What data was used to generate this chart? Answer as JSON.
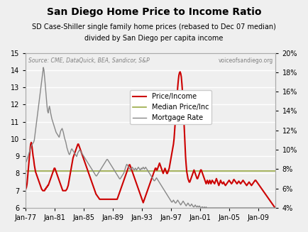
{
  "title": "San Diego Home Price to Income Ratio",
  "subtitle1": "SD Case-Shiller single family home prices (rebased to Dec 07 median)",
  "subtitle2": "divided by San Diego per capita income",
  "source_left": "Source: CME, DataQuick, BEA, Sandicor, S&P",
  "source_right": "voiceofsandiego.org",
  "ylim_left": [
    6,
    15
  ],
  "ylim_right": [
    4,
    20
  ],
  "yticks_left": [
    6,
    7,
    8,
    9,
    10,
    11,
    12,
    13,
    14,
    15
  ],
  "yticks_right_vals": [
    4,
    6,
    8,
    10,
    12,
    14,
    16,
    18,
    20
  ],
  "yticks_right_labels": [
    "4%",
    "6%",
    "8%",
    "10%",
    "12%",
    "14%",
    "16%",
    "18%",
    "20%"
  ],
  "xtick_labels": [
    "Jan-77",
    "Jan-81",
    "Jan-85",
    "Jan-89",
    "Jan-93",
    "Jan-97",
    "Jan-01",
    "Jan-05",
    "Jan-09"
  ],
  "xtick_positions": [
    0,
    48,
    96,
    144,
    192,
    240,
    288,
    336,
    384
  ],
  "n_months": 414,
  "background_color": "#efefef",
  "plot_bg_color": "#efefef",
  "grid_color": "#ffffff",
  "price_income_color": "#cc0000",
  "median_color": "#99aa44",
  "mortgage_color": "#888888",
  "median_value": 8.15,
  "legend_labels": [
    "Price/Income",
    "Median Price/Inc",
    "Mortgage Rate"
  ],
  "price_income_data": [
    7.1,
    7.2,
    7.4,
    7.8,
    8.2,
    8.6,
    9.0,
    9.4,
    9.7,
    9.8,
    9.6,
    9.3,
    9.0,
    8.8,
    8.5,
    8.3,
    8.1,
    8.0,
    7.9,
    7.8,
    7.7,
    7.6,
    7.5,
    7.4,
    7.3,
    7.2,
    7.1,
    7.05,
    7.0,
    7.0,
    7.0,
    7.0,
    7.1,
    7.1,
    7.2,
    7.2,
    7.3,
    7.3,
    7.4,
    7.5,
    7.6,
    7.7,
    7.8,
    7.9,
    8.0,
    8.1,
    8.2,
    8.3,
    8.3,
    8.2,
    8.1,
    8.0,
    7.9,
    7.8,
    7.7,
    7.6,
    7.5,
    7.4,
    7.3,
    7.2,
    7.1,
    7.0,
    7.0,
    7.0,
    7.0,
    7.0,
    7.0,
    7.05,
    7.1,
    7.2,
    7.3,
    7.5,
    7.7,
    7.9,
    8.1,
    8.3,
    8.5,
    8.7,
    8.9,
    9.0,
    9.1,
    9.2,
    9.3,
    9.4,
    9.5,
    9.6,
    9.7,
    9.7,
    9.6,
    9.5,
    9.4,
    9.3,
    9.2,
    9.1,
    9.0,
    8.9,
    8.8,
    8.7,
    8.6,
    8.5,
    8.4,
    8.3,
    8.2,
    8.1,
    8.0,
    7.9,
    7.8,
    7.7,
    7.6,
    7.5,
    7.4,
    7.3,
    7.2,
    7.1,
    7.0,
    6.9,
    6.8,
    6.75,
    6.7,
    6.65,
    6.6,
    6.55,
    6.5,
    6.5,
    6.5,
    6.5,
    6.5,
    6.5,
    6.5,
    6.5,
    6.5,
    6.5,
    6.5,
    6.5,
    6.5,
    6.5,
    6.5,
    6.5,
    6.5,
    6.5,
    6.5,
    6.5,
    6.5,
    6.5,
    6.5,
    6.5,
    6.5,
    6.5,
    6.5,
    6.5,
    6.5,
    6.5,
    6.6,
    6.7,
    6.8,
    6.9,
    7.0,
    7.1,
    7.2,
    7.3,
    7.4,
    7.5,
    7.6,
    7.7,
    7.8,
    7.9,
    8.0,
    8.1,
    8.2,
    8.3,
    8.4,
    8.5,
    8.5,
    8.4,
    8.3,
    8.2,
    8.1,
    8.0,
    7.9,
    7.8,
    7.7,
    7.6,
    7.5,
    7.4,
    7.3,
    7.2,
    7.1,
    7.0,
    6.9,
    6.8,
    6.7,
    6.6,
    6.5,
    6.4,
    6.3,
    6.4,
    6.5,
    6.6,
    6.7,
    6.8,
    6.9,
    7.0,
    7.1,
    7.2,
    7.3,
    7.4,
    7.5,
    7.6,
    7.7,
    7.8,
    7.9,
    8.0,
    8.1,
    8.2,
    8.3,
    8.3,
    8.2,
    8.2,
    8.3,
    8.4,
    8.5,
    8.6,
    8.5,
    8.4,
    8.3,
    8.2,
    8.1,
    8.0,
    8.1,
    8.2,
    8.3,
    8.2,
    8.1,
    8.0,
    8.0,
    8.1,
    8.2,
    8.3,
    8.5,
    8.7,
    8.9,
    9.1,
    9.3,
    9.5,
    9.7,
    10.0,
    10.5,
    11.0,
    11.5,
    12.0,
    12.5,
    13.0,
    13.4,
    13.7,
    13.85,
    13.9,
    13.8,
    13.6,
    13.2,
    12.7,
    12.0,
    11.3,
    10.5,
    9.7,
    9.0,
    8.5,
    8.1,
    7.9,
    7.7,
    7.6,
    7.5,
    7.5,
    7.6,
    7.7,
    7.8,
    7.9,
    8.0,
    8.1,
    8.2,
    8.1,
    8.0,
    7.9,
    7.8,
    7.7,
    7.7,
    7.8,
    7.9,
    8.0,
    8.1,
    8.2,
    8.2,
    8.1,
    8.0,
    7.9,
    7.8,
    7.7,
    7.6,
    7.5,
    7.4,
    7.5,
    7.6,
    7.5,
    7.4,
    7.5,
    7.6,
    7.5,
    7.4,
    7.5,
    7.6,
    7.55,
    7.5,
    7.45,
    7.4,
    7.5,
    7.6,
    7.7,
    7.6,
    7.5,
    7.4,
    7.3,
    7.4,
    7.5,
    7.6,
    7.5,
    7.45,
    7.4,
    7.45,
    7.5,
    7.4,
    7.35,
    7.3,
    7.35,
    7.4,
    7.45,
    7.5,
    7.55,
    7.6,
    7.55,
    7.5,
    7.45,
    7.4,
    7.45,
    7.5,
    7.6,
    7.65,
    7.6,
    7.55,
    7.5,
    7.45,
    7.4,
    7.45,
    7.5,
    7.55,
    7.5,
    7.45,
    7.4,
    7.45,
    7.5,
    7.55,
    7.6,
    7.55,
    7.5,
    7.45,
    7.4,
    7.35,
    7.3,
    7.35,
    7.4,
    7.45,
    7.5,
    7.45,
    7.4,
    7.35,
    7.3,
    7.35,
    7.4,
    7.45,
    7.5,
    7.55,
    7.6,
    7.6,
    7.55,
    7.5,
    7.45,
    7.4,
    7.35,
    7.3,
    7.25,
    7.2,
    7.15,
    7.1,
    7.05,
    7.0,
    6.95,
    6.9,
    6.85,
    6.8,
    6.75,
    6.7,
    6.65,
    6.6,
    6.55,
    6.5,
    6.45,
    6.4,
    6.35,
    6.3,
    6.25,
    6.2,
    6.15,
    6.1,
    6.05,
    6.0
  ],
  "mortgage_rate_data": [
    8.7,
    8.8,
    9.0,
    9.2,
    9.4,
    9.6,
    9.8,
    10.0,
    10.2,
    10.4,
    10.5,
    10.6,
    10.7,
    10.8,
    11.0,
    11.5,
    12.0,
    12.5,
    13.0,
    13.5,
    14.0,
    14.5,
    15.0,
    15.5,
    16.0,
    16.5,
    17.0,
    17.5,
    18.0,
    18.5,
    18.2,
    17.5,
    16.8,
    16.0,
    15.2,
    14.5,
    14.0,
    13.8,
    14.2,
    14.5,
    14.2,
    13.8,
    13.5,
    13.2,
    13.0,
    12.8,
    12.6,
    12.4,
    12.2,
    12.0,
    11.8,
    11.7,
    11.6,
    11.5,
    11.4,
    11.3,
    11.5,
    11.8,
    12.0,
    12.1,
    12.2,
    12.0,
    11.8,
    11.5,
    11.2,
    11.0,
    10.8,
    10.5,
    10.2,
    10.0,
    9.8,
    9.6,
    9.5,
    9.6,
    9.8,
    10.0,
    10.1,
    10.0,
    9.9,
    9.8,
    9.7,
    9.6,
    9.5,
    9.4,
    9.3,
    9.5,
    9.7,
    9.8,
    9.9,
    10.0,
    9.9,
    9.8,
    9.7,
    9.6,
    9.5,
    9.4,
    9.3,
    9.2,
    9.1,
    9.0,
    8.9,
    8.8,
    8.7,
    8.6,
    8.5,
    8.4,
    8.3,
    8.2,
    8.1,
    8.0,
    7.9,
    7.8,
    7.7,
    7.6,
    7.5,
    7.4,
    7.3,
    7.3,
    7.4,
    7.5,
    7.6,
    7.7,
    7.8,
    7.9,
    8.0,
    8.1,
    8.2,
    8.3,
    8.4,
    8.5,
    8.6,
    8.7,
    8.8,
    8.9,
    9.0,
    9.0,
    8.9,
    8.8,
    8.7,
    8.6,
    8.5,
    8.4,
    8.3,
    8.2,
    8.1,
    8.0,
    7.9,
    7.8,
    7.7,
    7.6,
    7.5,
    7.4,
    7.3,
    7.2,
    7.1,
    7.0,
    7.0,
    7.1,
    7.2,
    7.3,
    7.4,
    7.5,
    7.6,
    7.8,
    8.0,
    8.2,
    8.4,
    8.5,
    8.4,
    8.3,
    8.2,
    8.1,
    8.0,
    7.9,
    8.0,
    8.1,
    8.2,
    8.1,
    8.0,
    7.9,
    8.0,
    8.1,
    8.0,
    7.9,
    8.0,
    8.1,
    8.2,
    8.1,
    8.0,
    7.9,
    8.0,
    8.1,
    8.0,
    8.1,
    8.2,
    8.1,
    8.0,
    8.1,
    8.2,
    8.1,
    8.0,
    7.9,
    7.8,
    7.7,
    7.6,
    7.5,
    7.4,
    7.3,
    7.2,
    7.1,
    7.0,
    6.9,
    6.8,
    6.8,
    6.9,
    7.0,
    7.1,
    7.0,
    6.9,
    6.8,
    6.7,
    6.6,
    6.5,
    6.4,
    6.3,
    6.2,
    6.1,
    6.0,
    5.9,
    5.8,
    5.7,
    5.6,
    5.5,
    5.4,
    5.3,
    5.2,
    5.1,
    5.0,
    4.9,
    4.8,
    4.7,
    4.6,
    4.6,
    4.7,
    4.8,
    4.7,
    4.6,
    4.5,
    4.5,
    4.6,
    4.7,
    4.8,
    4.7,
    4.6,
    4.5,
    4.4,
    4.3,
    4.4,
    4.5,
    4.6,
    4.7,
    4.6,
    4.5,
    4.4,
    4.3,
    4.2,
    4.3,
    4.4,
    4.5,
    4.4,
    4.3,
    4.2,
    4.2,
    4.3,
    4.4,
    4.3,
    4.2,
    4.1,
    4.1,
    4.2,
    4.3,
    4.2,
    4.1,
    4.1,
    4.2,
    4.1,
    4.1,
    4.2,
    4.1,
    4.0,
    4.0,
    4.1,
    4.1,
    4.0,
    4.0,
    4.1,
    4.0,
    4.0,
    4.1,
    4.0,
    4.0,
    4.0,
    4.0,
    4.0,
    4.0,
    4.0,
    4.0,
    4.0,
    4.0,
    4.0,
    4.0,
    4.0,
    4.0,
    4.0,
    4.0,
    4.0,
    4.0,
    4.0,
    4.0,
    4.0,
    4.0,
    4.0,
    4.0,
    4.0,
    4.0,
    4.0,
    4.0,
    4.0,
    4.0,
    4.0,
    4.0,
    4.0,
    4.0,
    4.0,
    4.0,
    4.0,
    4.0,
    4.0,
    4.0,
    4.0,
    4.0,
    4.0,
    4.0,
    4.0,
    4.0,
    4.0,
    4.0,
    4.0,
    4.0,
    4.0,
    4.0,
    4.0,
    4.0,
    4.0,
    4.0,
    4.0,
    4.0,
    4.0,
    4.0,
    4.0,
    4.0,
    4.0,
    4.0,
    4.0,
    4.0,
    4.0,
    4.0,
    4.0,
    4.0,
    4.0,
    4.0,
    4.0,
    4.0,
    4.0,
    4.0,
    4.0,
    4.0,
    4.0,
    4.0,
    4.0,
    4.0,
    4.0,
    4.0,
    4.0,
    4.0,
    4.0,
    4.0,
    4.0,
    4.0,
    4.0,
    4.0,
    4.0,
    4.0,
    4.0,
    4.0,
    4.0,
    4.0,
    4.0,
    4.0,
    4.0,
    4.0,
    4.0,
    4.0,
    4.0,
    4.0,
    4.0,
    4.0,
    4.0,
    4.0,
    4.0,
    4.0,
    4.0,
    4.0
  ]
}
